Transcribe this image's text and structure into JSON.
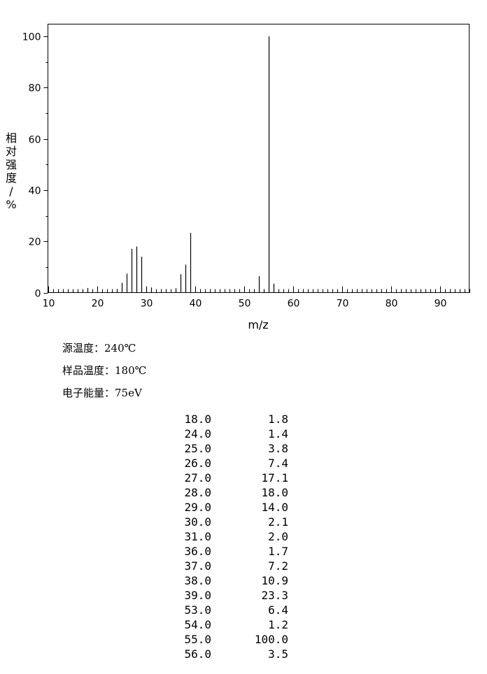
{
  "chart_data": {
    "type": "bar",
    "xlabel": "m/z",
    "ylabel": "相对强度/%",
    "xlim": [
      10,
      96
    ],
    "ylim": [
      0,
      105
    ],
    "x_ticks": [
      "10",
      "20",
      "30",
      "40",
      "50",
      "60",
      "70",
      "80",
      "90"
    ],
    "y_ticks": [
      "0",
      "20",
      "40",
      "60",
      "80",
      "100"
    ],
    "x": [
      12,
      13,
      14,
      15,
      16,
      17,
      18,
      24,
      25,
      26,
      27,
      28,
      29,
      30,
      31,
      36,
      37,
      38,
      39,
      53,
      54,
      55,
      56
    ],
    "values": [
      0.4,
      0.6,
      0.5,
      0.5,
      0.6,
      1.0,
      1.8,
      1.4,
      3.8,
      7.4,
      17.1,
      18.0,
      14.0,
      2.1,
      2.0,
      1.7,
      7.2,
      10.9,
      23.3,
      6.4,
      1.2,
      100.0,
      3.5
    ]
  },
  "conditions": [
    {
      "label": "源温度：",
      "value": "240℃"
    },
    {
      "label": "样品温度：",
      "value": "180℃"
    },
    {
      "label": "电子能量：",
      "value": "75eV"
    }
  ],
  "peak_table": [
    {
      "mz": "18.0",
      "abundance": "1.8"
    },
    {
      "mz": "24.0",
      "abundance": "1.4"
    },
    {
      "mz": "25.0",
      "abundance": "3.8"
    },
    {
      "mz": "26.0",
      "abundance": "7.4"
    },
    {
      "mz": "27.0",
      "abundance": "17.1"
    },
    {
      "mz": "28.0",
      "abundance": "18.0"
    },
    {
      "mz": "29.0",
      "abundance": "14.0"
    },
    {
      "mz": "30.0",
      "abundance": "2.1"
    },
    {
      "mz": "31.0",
      "abundance": "2.0"
    },
    {
      "mz": "36.0",
      "abundance": "1.7"
    },
    {
      "mz": "37.0",
      "abundance": "7.2"
    },
    {
      "mz": "38.0",
      "abundance": "10.9"
    },
    {
      "mz": "39.0",
      "abundance": "23.3"
    },
    {
      "mz": "53.0",
      "abundance": "6.4"
    },
    {
      "mz": "54.0",
      "abundance": "1.2"
    },
    {
      "mz": "55.0",
      "abundance": "100.0"
    },
    {
      "mz": "56.0",
      "abundance": "3.5"
    }
  ]
}
